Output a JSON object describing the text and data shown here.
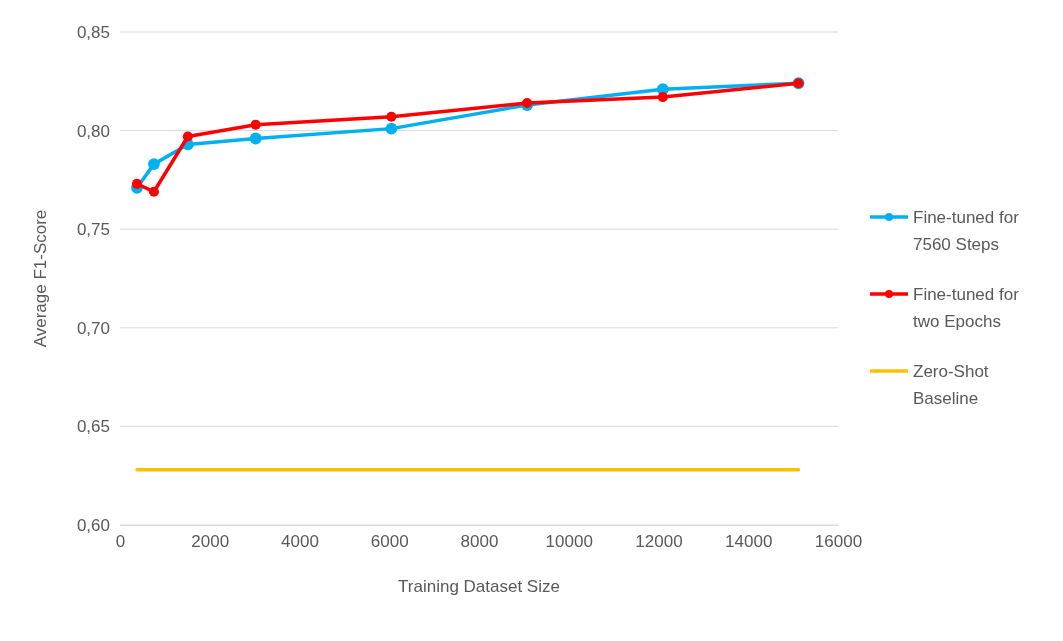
{
  "chart_data": {
    "type": "line",
    "xlabel": "Training Dataset Size",
    "ylabel": "Average F1-Score",
    "xlim": [
      0,
      16000
    ],
    "xticks": [
      0,
      2000,
      4000,
      6000,
      8000,
      10000,
      12000,
      14000,
      16000
    ],
    "ylim": [
      0.6,
      0.85
    ],
    "yticks": [
      {
        "value": 0.6,
        "label": "0,60"
      },
      {
        "value": 0.65,
        "label": "0,65"
      },
      {
        "value": 0.7,
        "label": "0,70"
      },
      {
        "value": 0.75,
        "label": "0,75"
      },
      {
        "value": 0.8,
        "label": "0,80"
      },
      {
        "value": 0.85,
        "label": "0,85"
      }
    ],
    "grid": "y",
    "legend": "right",
    "marker": "circle",
    "line_style": "solid",
    "series": [
      {
        "name": "Fine-tuned for 7560 Steps",
        "color": "#00b0f0",
        "x": [
          378,
          756,
          1512,
          3024,
          6048,
          9072,
          12096,
          15120
        ],
        "values": [
          0.771,
          0.783,
          0.793,
          0.796,
          0.801,
          0.813,
          0.821,
          0.824
        ]
      },
      {
        "name": "Fine-tuned for two Epochs",
        "color": "#ff0000",
        "x": [
          378,
          756,
          1512,
          3024,
          6048,
          9072,
          12096,
          15120
        ],
        "values": [
          0.773,
          0.769,
          0.797,
          0.803,
          0.807,
          0.814,
          0.817,
          0.824
        ]
      },
      {
        "name": "Zero-Shot Baseline",
        "color": "#ffc000",
        "marker": "none",
        "x": [
          378,
          15120
        ],
        "values": [
          0.628,
          0.628
        ]
      }
    ]
  }
}
